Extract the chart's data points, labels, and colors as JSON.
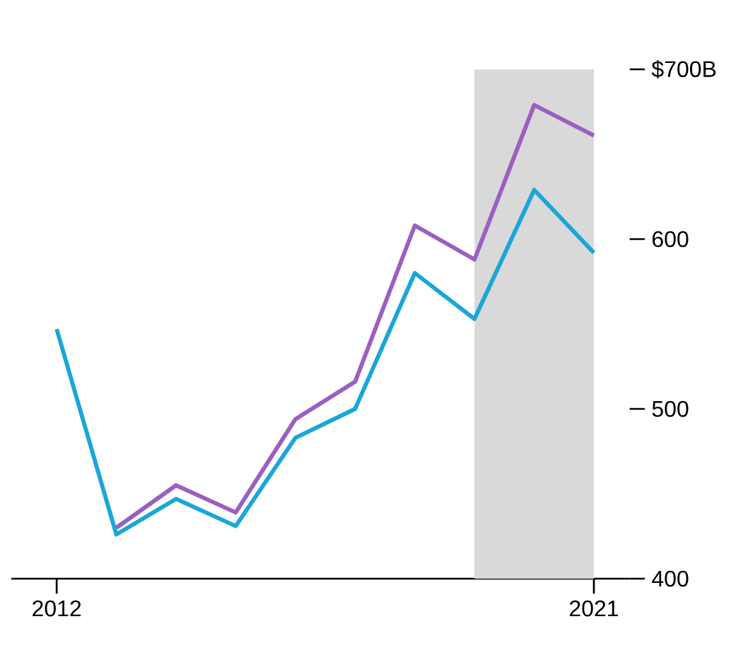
{
  "chart_data": {
    "type": "line",
    "x": [
      2012,
      2013,
      2014,
      2015,
      2016,
      2017,
      2018,
      2019,
      2020,
      2021
    ],
    "series": [
      {
        "color": "#9b5fc0",
        "values": [
          null,
          430,
          455,
          439,
          494,
          516,
          608,
          588,
          679,
          661
        ]
      },
      {
        "color": "#1ba6d9",
        "values": [
          547,
          426,
          447,
          431,
          483,
          500,
          580,
          553,
          629,
          592
        ]
      }
    ],
    "xlim": [
      2011.24,
      2021.6
    ],
    "ylim": [
      400,
      700
    ],
    "xticks": [
      2012,
      2021
    ],
    "yticks": [
      {
        "value": 400,
        "label": "400"
      },
      {
        "value": 500,
        "label": "500"
      },
      {
        "value": 600,
        "label": "600"
      },
      {
        "value": 700,
        "label": "$700B"
      }
    ],
    "bands": [
      {
        "axis": "x",
        "from": 2019,
        "to": 2021,
        "color": "#d9d9d9"
      }
    ],
    "grid": false,
    "marker": "none",
    "line_style": "solid"
  }
}
